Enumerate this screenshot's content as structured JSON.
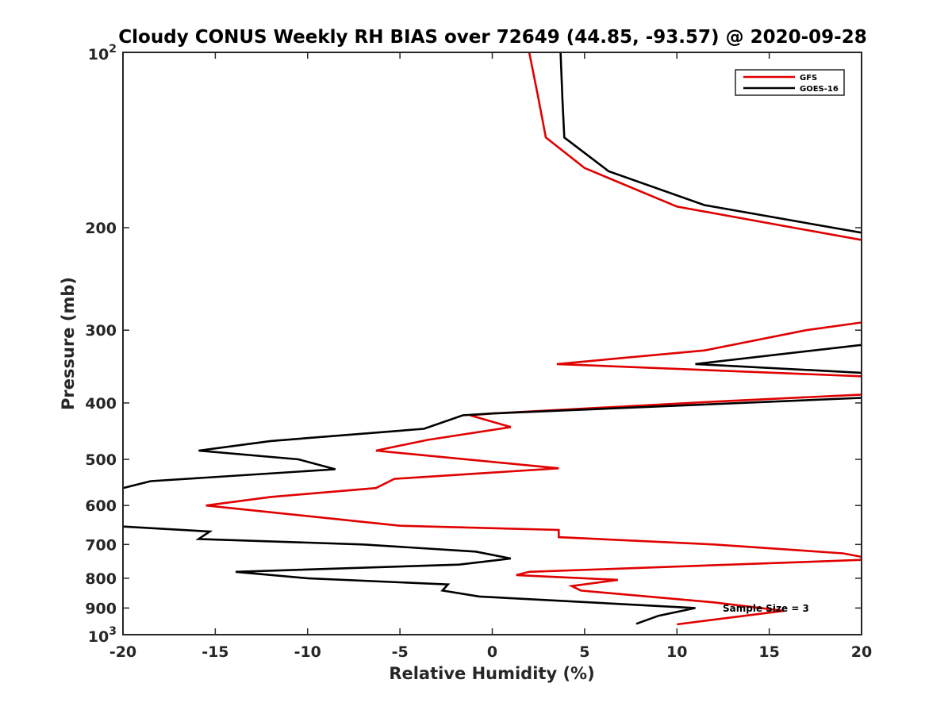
{
  "chart_data": {
    "type": "line",
    "title": "Cloudy CONUS Weekly RH BIAS over 72649 (44.85, -93.57) @ 2020-09-28",
    "xlabel": "Relative Humidity (%)",
    "ylabel": "Pressure (mb)",
    "xlim": [
      -20,
      20
    ],
    "ylim": [
      100,
      1000
    ],
    "yscale": "log",
    "yreversed": true,
    "grid": false,
    "xticks": [
      -20,
      -15,
      -10,
      -5,
      0,
      5,
      10,
      15,
      20
    ],
    "xtick_labels": [
      "-20",
      "-15",
      "-10",
      "-5",
      "0",
      "5",
      "10",
      "15",
      "20"
    ],
    "yticks": [
      200,
      300,
      400,
      500,
      600,
      700,
      800,
      900
    ],
    "ytick_labels": [
      "200",
      "300",
      "400",
      "500",
      "600",
      "700",
      "800",
      "900"
    ],
    "ytick_endpoints": [
      {
        "value": 100,
        "base": "10",
        "exponent": "2"
      },
      {
        "value": 1000,
        "base": "10",
        "exponent": "3"
      }
    ],
    "legend_position": "top-right",
    "annotation": "Sample Size = 3",
    "series": [
      {
        "name": "GFS",
        "color": "#e00000",
        "points": [
          [
            2.0,
            100
          ],
          [
            2.5,
            120
          ],
          [
            2.9,
            140
          ],
          [
            5.0,
            158
          ],
          [
            10.0,
            184
          ],
          [
            20.0,
            210
          ],
          [
            null,
            null
          ],
          [
            20.0,
            291
          ],
          [
            17.0,
            300
          ],
          [
            11.5,
            325
          ],
          [
            3.5,
            343
          ],
          [
            20.0,
            360
          ],
          [
            null,
            null
          ],
          [
            20.0,
            387
          ],
          [
            12.0,
            398
          ],
          [
            0.0,
            417
          ],
          [
            -1.2,
            420
          ],
          [
            1.0,
            440
          ],
          [
            -3.5,
            463
          ],
          [
            -6.3,
            483
          ],
          [
            3.6,
            518
          ],
          [
            -5.3,
            540
          ],
          [
            -6.3,
            560
          ],
          [
            -12.0,
            580
          ],
          [
            -15.5,
            600
          ],
          [
            -5.0,
            650
          ],
          [
            3.6,
            661
          ],
          [
            3.6,
            680
          ],
          [
            12.0,
            700
          ],
          [
            19.0,
            725
          ],
          [
            20.0,
            735
          ],
          [
            20.0,
            744
          ],
          [
            17.0,
            750
          ],
          [
            2.0,
            780
          ],
          [
            1.3,
            790
          ],
          [
            6.8,
            805
          ],
          [
            4.3,
            825
          ],
          [
            4.8,
            840
          ],
          [
            12.0,
            880
          ],
          [
            15.8,
            910
          ],
          [
            10.0,
            960
          ]
        ]
      },
      {
        "name": "GOES-16",
        "color": "#000000",
        "points": [
          [
            3.7,
            100
          ],
          [
            3.8,
            120
          ],
          [
            3.9,
            140
          ],
          [
            6.3,
            160
          ],
          [
            11.5,
            183
          ],
          [
            20.0,
            204
          ],
          [
            null,
            null
          ],
          [
            20.0,
            318
          ],
          [
            11.0,
            343
          ],
          [
            20.0,
            355
          ],
          [
            null,
            null
          ],
          [
            20.0,
            392
          ],
          [
            0.0,
            417
          ],
          [
            -1.6,
            420
          ],
          [
            -3.7,
            443
          ],
          [
            -12.0,
            465
          ],
          [
            -15.9,
            483
          ],
          [
            -10.5,
            500
          ],
          [
            -8.5,
            520
          ],
          [
            -18.5,
            545
          ],
          [
            -20.0,
            560
          ],
          [
            null,
            null
          ],
          [
            -20.0,
            652
          ],
          [
            -15.3,
            665
          ],
          [
            -15.9,
            685
          ],
          [
            -7.0,
            700
          ],
          [
            -0.9,
            720
          ],
          [
            1.0,
            740
          ],
          [
            -1.8,
            758
          ],
          [
            -13.9,
            780
          ],
          [
            -10.0,
            800
          ],
          [
            -2.4,
            820
          ],
          [
            -2.7,
            840
          ],
          [
            -0.7,
            860
          ],
          [
            11.0,
            900
          ],
          [
            9.0,
            928
          ],
          [
            7.8,
            958
          ]
        ]
      }
    ]
  }
}
